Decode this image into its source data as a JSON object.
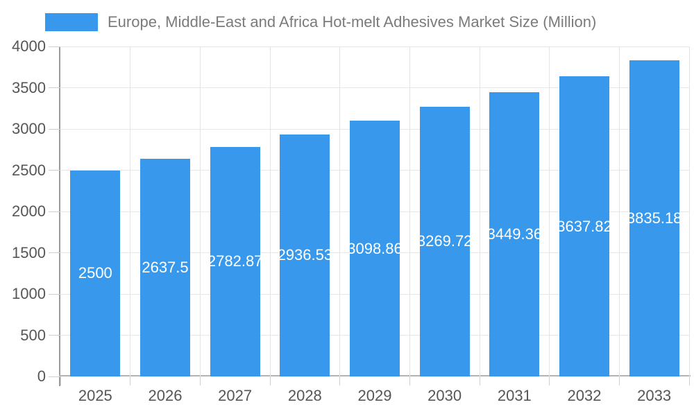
{
  "legend": {
    "label": "Europe, Middle-East and Africa Hot-melt Adhesives Market Size (Million)",
    "swatch_color": "#3899ec"
  },
  "chart_data": {
    "type": "bar",
    "title": "Europe, Middle-East and Africa Hot-melt Adhesives Market Size (Million)",
    "categories": [
      "2025",
      "2026",
      "2027",
      "2028",
      "2029",
      "2030",
      "2031",
      "2032",
      "2033"
    ],
    "series": [
      {
        "name": "Europe, Middle-East and Africa Hot-melt Adhesives Market Size (Million)",
        "values": [
          2500,
          2637.5,
          2782.87,
          2936.53,
          3098.86,
          3269.72,
          3449.36,
          3637.82,
          3835.18
        ],
        "value_labels": [
          "2500",
          "2637.5",
          "2782.87",
          "2936.53",
          "3098.86",
          "3269.72",
          "3449.36",
          "3637.82",
          "3835.18"
        ],
        "color": "#3899ec"
      }
    ],
    "xlabel": "",
    "ylabel": "",
    "ylim": [
      0,
      4000
    ],
    "yticks": [
      0,
      500,
      1000,
      1500,
      2000,
      2500,
      3000,
      3500,
      4000
    ],
    "grid": true,
    "legend_position": "top-left",
    "value_label_position": "inside-center",
    "value_label_color": "#ffffff"
  },
  "colors": {
    "bar": "#3899ec",
    "gridline": "#e6e6e6",
    "band_separator": "#e3e3e3",
    "y_axis_line": "#9b9b9b",
    "x_baseline": "#b3b3b3",
    "tick": "#cfcfcf",
    "tick_label": "#565656",
    "legend_label": "#7b7b7b",
    "background": "#ffffff"
  }
}
